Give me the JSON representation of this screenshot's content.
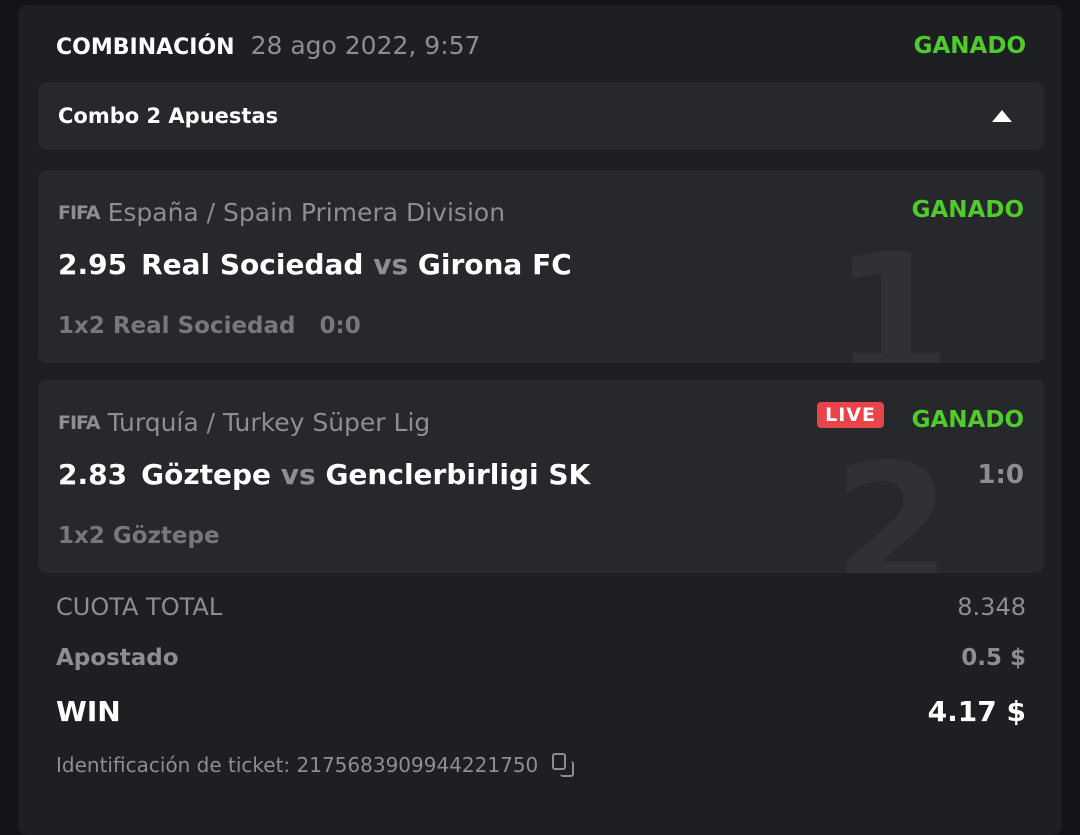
{
  "header": {
    "title": "COMBINACIÓN",
    "date": "28 ago 2022, 9:57",
    "status": "GANADO"
  },
  "combo": {
    "label": "Combo 2 Apuestas",
    "toggle_icon": "caret-up-icon"
  },
  "bets": [
    {
      "index": "1",
      "league": "España / Spain Primera Division",
      "odds": "2.95",
      "home": "Real Sociedad",
      "vs": "vs",
      "away": "Girona FC",
      "market": "1x2 Real Sociedad",
      "score": "0:0",
      "status": "GANADO",
      "sport_icon": "FIFA"
    },
    {
      "index": "2",
      "league": "Turquía / Turkey Süper Lig",
      "odds": "2.83",
      "home": "Göztepe",
      "vs": "vs",
      "away": "Genclerbirligi SK",
      "market": "1x2 Göztepe",
      "score": "1:0",
      "live": "LIVE",
      "status": "GANADO",
      "sport_icon": "FIFA"
    }
  ],
  "totals": {
    "odds_label": "CUOTA TOTAL",
    "odds_value": "8.348",
    "stake_label": "Apostado",
    "stake_value": "0.5 $",
    "win_label": "WIN",
    "win_value": "4.17 $"
  },
  "ticket": {
    "label": "Identificación de ticket: 2175683909944221750"
  },
  "colors": {
    "win": "#4fcb2a",
    "live": "#e9444a"
  }
}
